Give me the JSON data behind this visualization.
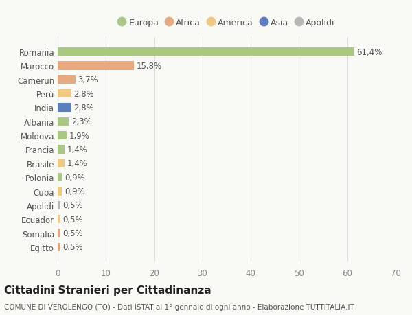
{
  "categories": [
    "Romania",
    "Marocco",
    "Camerun",
    "Perù",
    "India",
    "Albania",
    "Moldova",
    "Francia",
    "Brasile",
    "Polonia",
    "Cuba",
    "Apolidi",
    "Ecuador",
    "Somalia",
    "Egitto"
  ],
  "values": [
    61.4,
    15.8,
    3.7,
    2.8,
    2.8,
    2.3,
    1.9,
    1.4,
    1.4,
    0.9,
    0.9,
    0.5,
    0.5,
    0.5,
    0.5
  ],
  "labels": [
    "61,4%",
    "15,8%",
    "3,7%",
    "2,8%",
    "2,8%",
    "2,3%",
    "1,9%",
    "1,4%",
    "1,4%",
    "0,9%",
    "0,9%",
    "0,5%",
    "0,5%",
    "0,5%",
    "0,5%"
  ],
  "colors": [
    "#a8c97f",
    "#e8a97e",
    "#e8a97e",
    "#f0c97e",
    "#5b7fbf",
    "#a8c97f",
    "#a8c97f",
    "#a8c97f",
    "#f0c97e",
    "#a8c97f",
    "#f0c97e",
    "#b8b8b8",
    "#f0c97e",
    "#e8a97e",
    "#e8a97e"
  ],
  "legend_labels": [
    "Europa",
    "Africa",
    "America",
    "Asia",
    "Apolidi"
  ],
  "legend_colors": [
    "#a8c97f",
    "#e8a97e",
    "#f0c97e",
    "#5b7fbf",
    "#b8b8b8"
  ],
  "title": "Cittadini Stranieri per Cittadinanza",
  "subtitle": "COMUNE DI VEROLENGO (TO) - Dati ISTAT al 1° gennaio di ogni anno - Elaborazione TUTTITALIA.IT",
  "xlim": [
    0,
    70
  ],
  "xticks": [
    0,
    10,
    20,
    30,
    40,
    50,
    60,
    70
  ],
  "background_color": "#f9f9f5",
  "grid_color": "#dddddd",
  "bar_height": 0.6,
  "label_fontsize": 8.5,
  "tick_fontsize": 8.5,
  "title_fontsize": 11,
  "subtitle_fontsize": 7.5
}
